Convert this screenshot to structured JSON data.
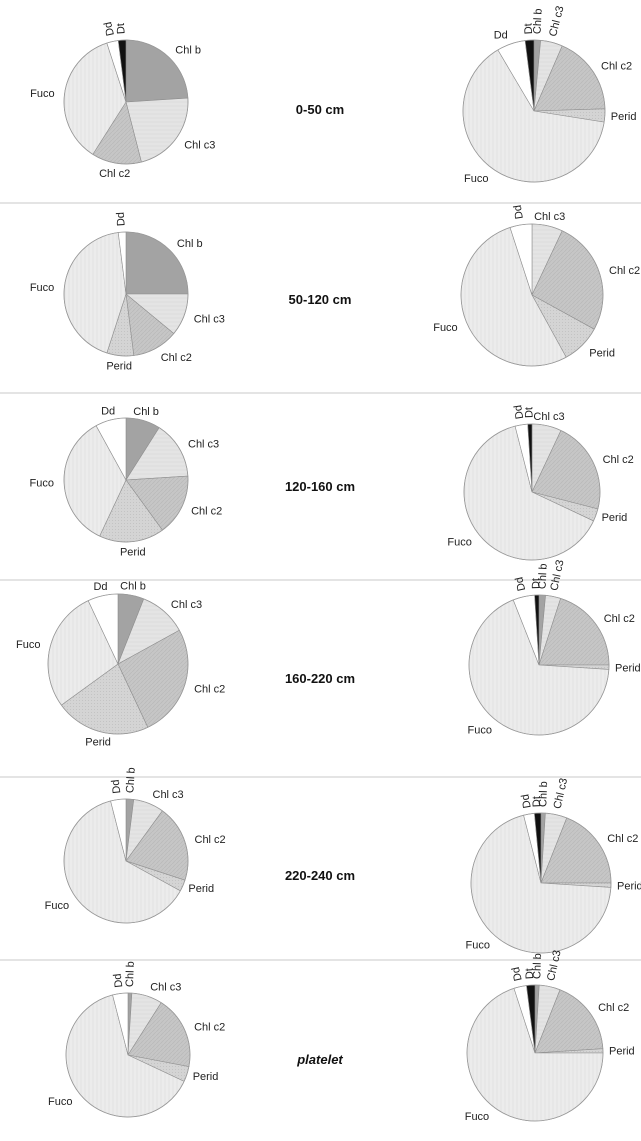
{
  "colors": {
    "Chl b": "#a3a3a3",
    "Chl c3": "#e4e4e4",
    "Chl c2": "#c6c6c6",
    "Perid": "#d2d2d2",
    "Fuco": "#ececec",
    "Dd": "#ffffff",
    "Dt": "#111111"
  },
  "chart_data": [
    {
      "type": "pie",
      "chart": "left",
      "row": 0,
      "row_label": "0-50 cm",
      "labels": [
        "Chl b",
        "Chl c3",
        "Chl c2",
        "Fuco",
        "Dd",
        "Dt"
      ],
      "values": [
        24,
        22,
        13,
        36,
        3,
        2
      ]
    },
    {
      "type": "pie",
      "chart": "right",
      "row": 0,
      "labels": [
        "Chl b",
        "Chl c3",
        "Chl c2",
        "Perid",
        "Fuco",
        "Dd",
        "Dt"
      ],
      "values": [
        1.5,
        5,
        18,
        3,
        64,
        6.5,
        2
      ]
    },
    {
      "type": "pie",
      "chart": "left",
      "row": 1,
      "row_label": "50-120 cm",
      "labels": [
        "Chl b",
        "Chl c3",
        "Chl c2",
        "Perid",
        "Fuco",
        "Dd"
      ],
      "values": [
        25,
        11,
        12,
        7,
        43,
        2
      ]
    },
    {
      "type": "pie",
      "chart": "right",
      "row": 1,
      "labels": [
        "Chl c3",
        "Chl c2",
        "Perid",
        "Fuco",
        "Dd"
      ],
      "values": [
        7,
        26,
        9,
        53,
        5
      ]
    },
    {
      "type": "pie",
      "chart": "left",
      "row": 2,
      "row_label": "120-160 cm",
      "labels": [
        "Chl b",
        "Chl c3",
        "Chl c2",
        "Perid",
        "Fuco",
        "Dd"
      ],
      "values": [
        9,
        15,
        16,
        17,
        35,
        8
      ]
    },
    {
      "type": "pie",
      "chart": "right",
      "row": 2,
      "labels": [
        "Chl c3",
        "Chl c2",
        "Perid",
        "Fuco",
        "Dd",
        "Dt"
      ],
      "values": [
        7,
        22,
        3,
        64,
        3,
        1
      ]
    },
    {
      "type": "pie",
      "chart": "left",
      "row": 3,
      "row_label": "160-220 cm",
      "labels": [
        "Chl b",
        "Chl c3",
        "Chl c2",
        "Perid",
        "Fuco",
        "Dd"
      ],
      "values": [
        6,
        11,
        26,
        22,
        28,
        7
      ]
    },
    {
      "type": "pie",
      "chart": "right",
      "row": 3,
      "labels": [
        "Chl b",
        "Chl c3",
        "Chl c2",
        "Perid",
        "Fuco",
        "Dd",
        "Dt"
      ],
      "values": [
        1.5,
        3.5,
        20,
        1,
        68,
        5,
        1
      ]
    },
    {
      "type": "pie",
      "chart": "left",
      "row": 4,
      "row_label": "220-240 cm",
      "labels": [
        "Chl b",
        "Chl c3",
        "Chl c2",
        "Perid",
        "Fuco",
        "Dd"
      ],
      "values": [
        2,
        8,
        20,
        3,
        63,
        4
      ]
    },
    {
      "type": "pie",
      "chart": "right",
      "row": 4,
      "labels": [
        "Chl b",
        "Chl c3",
        "Chl c2",
        "Perid",
        "Fuco",
        "Dd",
        "Dt"
      ],
      "values": [
        1,
        5,
        19,
        1,
        70,
        2.5,
        1.5
      ]
    },
    {
      "type": "pie",
      "chart": "left",
      "row": 5,
      "row_label": "platelet",
      "labels": [
        "Chl b",
        "Chl c3",
        "Chl c2",
        "Perid",
        "Fuco",
        "Dd"
      ],
      "values": [
        1,
        8,
        19,
        4,
        64,
        4
      ]
    },
    {
      "type": "pie",
      "chart": "right",
      "row": 5,
      "labels": [
        "Chl b",
        "Chl c3",
        "Chl c2",
        "Perid",
        "Fuco",
        "Dd",
        "Dt"
      ],
      "values": [
        1,
        5,
        18,
        1,
        70,
        3,
        2
      ]
    }
  ]
}
